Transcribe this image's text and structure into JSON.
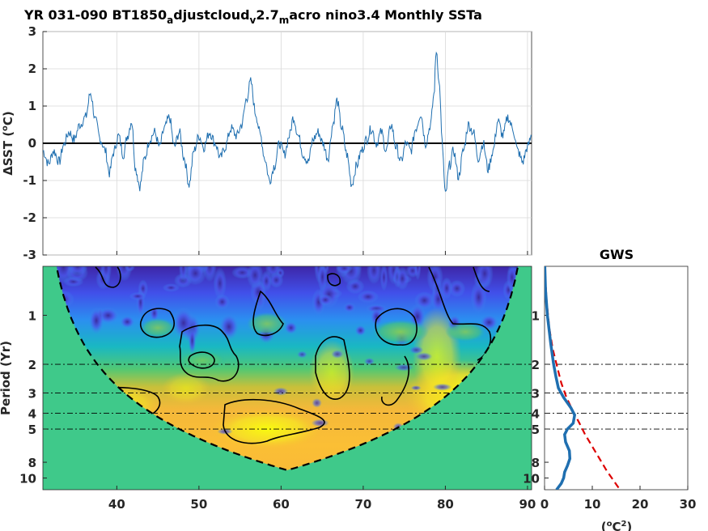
{
  "colors": {
    "sst_line": "#1f6fb0",
    "zero_line": "#000000",
    "cone_fill": "#3fc98a",
    "spectrum_line": "#1f6fb0",
    "red_noise_line": "#dd0000",
    "grid": "#d9d9d9"
  },
  "chart_data": [
    {
      "type": "line",
      "title": "YR 031-090 BT1850",
      "title_sub1": "a",
      "title_mid1": "djustcloud",
      "title_sub2": "v",
      "title_mid2": "2.7",
      "title_sub3": "m",
      "title_end": "acro nino3.4 Monthly SSTa",
      "ylabel_delta": "Δ",
      "ylabel_rest": "SST (",
      "ylabel_sup": "o",
      "ylabel_end": "C)",
      "xlim": [
        31,
        90.5
      ],
      "ylim": [
        -3,
        3
      ],
      "yticks": [
        3,
        2,
        1,
        0,
        -1,
        -2,
        -3
      ],
      "xticks": [
        40,
        50,
        60,
        70,
        80,
        90
      ],
      "grid": true,
      "keypoints": [
        [
          31.0,
          -0.2
        ],
        [
          31.7,
          -0.55
        ],
        [
          32.3,
          -0.2
        ],
        [
          33.0,
          -0.5
        ],
        [
          33.5,
          -0.05
        ],
        [
          34.2,
          0.3
        ],
        [
          34.8,
          0.1
        ],
        [
          35.5,
          0.5
        ],
        [
          36.2,
          0.7
        ],
        [
          36.8,
          1.35
        ],
        [
          37.4,
          0.6
        ],
        [
          38.0,
          0.1
        ],
        [
          38.6,
          -0.2
        ],
        [
          39.1,
          -0.8
        ],
        [
          39.6,
          -0.25
        ],
        [
          40.2,
          0.2
        ],
        [
          40.8,
          -0.3
        ],
        [
          41.3,
          0.2
        ],
        [
          41.8,
          0.6
        ],
        [
          42.3,
          -0.7
        ],
        [
          42.8,
          -1.15
        ],
        [
          43.4,
          -0.4
        ],
        [
          44.0,
          0.1
        ],
        [
          44.6,
          0.3
        ],
        [
          45.2,
          -0.1
        ],
        [
          45.8,
          0.4
        ],
        [
          46.4,
          0.7
        ],
        [
          47.0,
          -0.1
        ],
        [
          47.6,
          0.3
        ],
        [
          48.2,
          -0.4
        ],
        [
          48.8,
          -1.1
        ],
        [
          49.4,
          -0.2
        ],
        [
          50.0,
          0.2
        ],
        [
          50.6,
          -0.1
        ],
        [
          51.3,
          0.3
        ],
        [
          52.0,
          0.0
        ],
        [
          52.6,
          -0.4
        ],
        [
          53.2,
          -0.1
        ],
        [
          53.9,
          0.4
        ],
        [
          54.6,
          0.2
        ],
        [
          55.2,
          0.5
        ],
        [
          55.8,
          1.2
        ],
        [
          56.3,
          1.65
        ],
        [
          56.9,
          0.8
        ],
        [
          57.5,
          0.2
        ],
        [
          58.0,
          -0.4
        ],
        [
          58.6,
          -1.0
        ],
        [
          59.2,
          -0.6
        ],
        [
          59.8,
          0.0
        ],
        [
          60.4,
          -0.3
        ],
        [
          61.0,
          0.2
        ],
        [
          61.5,
          0.7
        ],
        [
          62.1,
          0.2
        ],
        [
          62.7,
          -0.3
        ],
        [
          63.3,
          -0.5
        ],
        [
          63.9,
          0.1
        ],
        [
          64.5,
          0.3
        ],
        [
          65.1,
          0.0
        ],
        [
          65.7,
          -0.4
        ],
        [
          66.3,
          0.5
        ],
        [
          66.8,
          1.15
        ],
        [
          67.4,
          0.4
        ],
        [
          68.0,
          -0.3
        ],
        [
          68.6,
          -1.1
        ],
        [
          69.2,
          -0.6
        ],
        [
          69.8,
          -0.2
        ],
        [
          70.4,
          0.1
        ],
        [
          71.0,
          0.4
        ],
        [
          71.6,
          0.0
        ],
        [
          72.2,
          0.3
        ],
        [
          72.8,
          -0.2
        ],
        [
          73.4,
          0.5
        ],
        [
          74.0,
          -0.1
        ],
        [
          74.6,
          -0.5
        ],
        [
          75.2,
          0.0
        ],
        [
          75.8,
          -0.2
        ],
        [
          76.4,
          0.4
        ],
        [
          77.0,
          0.8
        ],
        [
          77.6,
          0.0
        ],
        [
          78.2,
          0.5
        ],
        [
          78.6,
          1.3
        ],
        [
          78.9,
          2.5
        ],
        [
          79.3,
          1.5
        ],
        [
          79.6,
          0.0
        ],
        [
          80.0,
          -1.4
        ],
        [
          80.5,
          -0.6
        ],
        [
          81.0,
          -0.2
        ],
        [
          81.6,
          -0.9
        ],
        [
          82.2,
          -0.2
        ],
        [
          82.8,
          0.5
        ],
        [
          83.4,
          0.3
        ],
        [
          84.0,
          -0.4
        ],
        [
          84.6,
          0.0
        ],
        [
          85.2,
          -0.7
        ],
        [
          85.8,
          -0.2
        ],
        [
          86.4,
          0.6
        ],
        [
          87.0,
          0.2
        ],
        [
          87.6,
          0.7
        ],
        [
          88.2,
          0.4
        ],
        [
          88.8,
          -0.2
        ],
        [
          89.4,
          -0.5
        ],
        [
          90.0,
          -0.1
        ],
        [
          90.5,
          0.2
        ]
      ],
      "note": "series is a visual approximation sampled monthly"
    },
    {
      "type": "heatmap",
      "ylabel": "Period (Yr)",
      "yscale": "log",
      "ylim": [
        0.5,
        11.8
      ],
      "xlim": [
        31,
        90.5
      ],
      "xticks": [
        40,
        50,
        60,
        70,
        80,
        90
      ],
      "yticks": [
        1,
        2,
        3,
        4,
        5,
        8,
        10
      ],
      "reference_periods": [
        2,
        3,
        4,
        5
      ],
      "cone_of_influence": true,
      "colormap": [
        "#3e26a8",
        "#4050ec",
        "#2f8ef0",
        "#18b6c6",
        "#3bc88e",
        "#9fc63a",
        "#f0b93c",
        "#fadc28",
        "#f9fb0e"
      ]
    },
    {
      "type": "line",
      "title": "GWS",
      "xlabel_pre": "(",
      "xlabel_sup1": "o",
      "xlabel_mid": "C",
      "xlabel_sup2": "2",
      "xlabel_end": ")",
      "xlim": [
        0,
        30
      ],
      "xticks": [
        0,
        10,
        20,
        30
      ],
      "yticks": [
        1,
        2,
        3,
        4,
        5,
        8,
        10
      ],
      "reference_periods": [
        2,
        3,
        4,
        5
      ],
      "series": [
        {
          "key": "global_wavelet_spectrum",
          "points": [
            [
              0.05,
              0.5
            ],
            [
              0.2,
              0.7
            ],
            [
              0.6,
              1.0
            ],
            [
              1.3,
              1.5
            ],
            [
              1.9,
              2.0
            ],
            [
              2.4,
              2.4
            ],
            [
              2.9,
              2.8
            ],
            [
              4.0,
              3.2
            ],
            [
              5.5,
              3.7
            ],
            [
              6.3,
              4.1
            ],
            [
              6.0,
              4.6
            ],
            [
              4.8,
              5.0
            ],
            [
              4.2,
              5.4
            ],
            [
              4.4,
              6.0
            ],
            [
              5.2,
              6.8
            ],
            [
              5.3,
              7.6
            ],
            [
              4.8,
              8.4
            ],
            [
              4.2,
              9.2
            ],
            [
              4.0,
              10.0
            ],
            [
              3.5,
              10.8
            ],
            [
              2.5,
              11.8
            ]
          ]
        },
        {
          "key": "red_noise_significance",
          "dashed": true,
          "points": [
            [
              0.05,
              0.5
            ],
            [
              0.4,
              0.8
            ],
            [
              1.0,
              1.2
            ],
            [
              1.7,
              1.6
            ],
            [
              2.5,
              2.0
            ],
            [
              3.5,
              2.6
            ],
            [
              4.6,
              3.2
            ],
            [
              5.8,
              3.8
            ],
            [
              7.3,
              4.6
            ],
            [
              8.5,
              5.4
            ],
            [
              10.0,
              6.4
            ],
            [
              11.5,
              7.6
            ],
            [
              13.0,
              9.0
            ],
            [
              14.5,
              10.4
            ],
            [
              15.8,
              11.8
            ]
          ]
        }
      ]
    }
  ]
}
